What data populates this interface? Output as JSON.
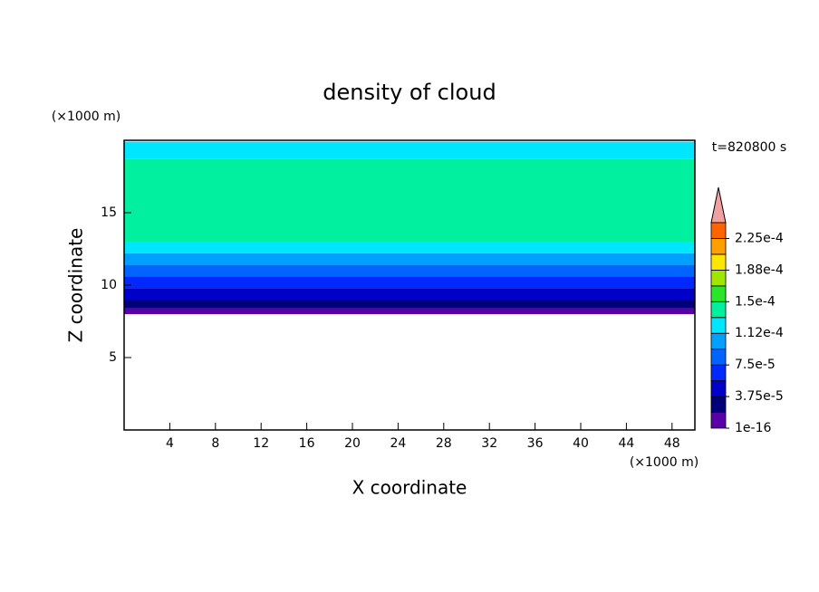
{
  "chart_data": {
    "type": "contour",
    "title": "density of cloud",
    "x_label": "X coordinate",
    "y_label": "Z coordinate",
    "x_unit": "(×1000 m)",
    "y_unit": "(×1000 m)",
    "annotation": "t=820800 s",
    "xlim": [
      0,
      50
    ],
    "xticks": [
      4,
      8,
      12,
      16,
      20,
      24,
      28,
      32,
      36,
      40,
      44,
      48
    ],
    "ylim": [
      0,
      20
    ],
    "yticks": [
      5,
      10,
      15
    ],
    "z_bounds": [
      8.0,
      8.4,
      9.0,
      9.8,
      10.6,
      11.4,
      12.2,
      13.0,
      18.7,
      19.9
    ],
    "values": [
      1e-05,
      2.5e-05,
      4.5e-05,
      6.5e-05,
      8.5e-05,
      0.0001,
      0.00012,
      0.00014,
      0.00012
    ],
    "levels": [
      1e-16,
      1.875e-05,
      3.75e-05,
      5.625e-05,
      7.5e-05,
      9.375e-05,
      0.0001125,
      0.00013125,
      0.00015,
      0.00016875,
      0.0001875,
      0.00020625,
      0.000225,
      0.00024375
    ],
    "colors": [
      "#5a00a8",
      "#00007a",
      "#0000c8",
      "#0028ff",
      "#0064ff",
      "#00a0ff",
      "#00e6ff",
      "#00f0a0",
      "#28e628",
      "#a0e600",
      "#ffe600",
      "#ffa000",
      "#ff6400"
    ],
    "colorbar_ticks": [
      {
        "value": 1e-16,
        "label": "1e-16"
      },
      {
        "value": 3.75e-05,
        "label": "3.75e-5"
      },
      {
        "value": 7.5e-05,
        "label": "7.5e-5"
      },
      {
        "value": 0.0001125,
        "label": "1.12e-4"
      },
      {
        "value": 0.00015,
        "label": "1.5e-4"
      },
      {
        "value": 0.0001875,
        "label": "1.88e-4"
      },
      {
        "value": 0.000225,
        "label": "2.25e-4"
      }
    ]
  }
}
